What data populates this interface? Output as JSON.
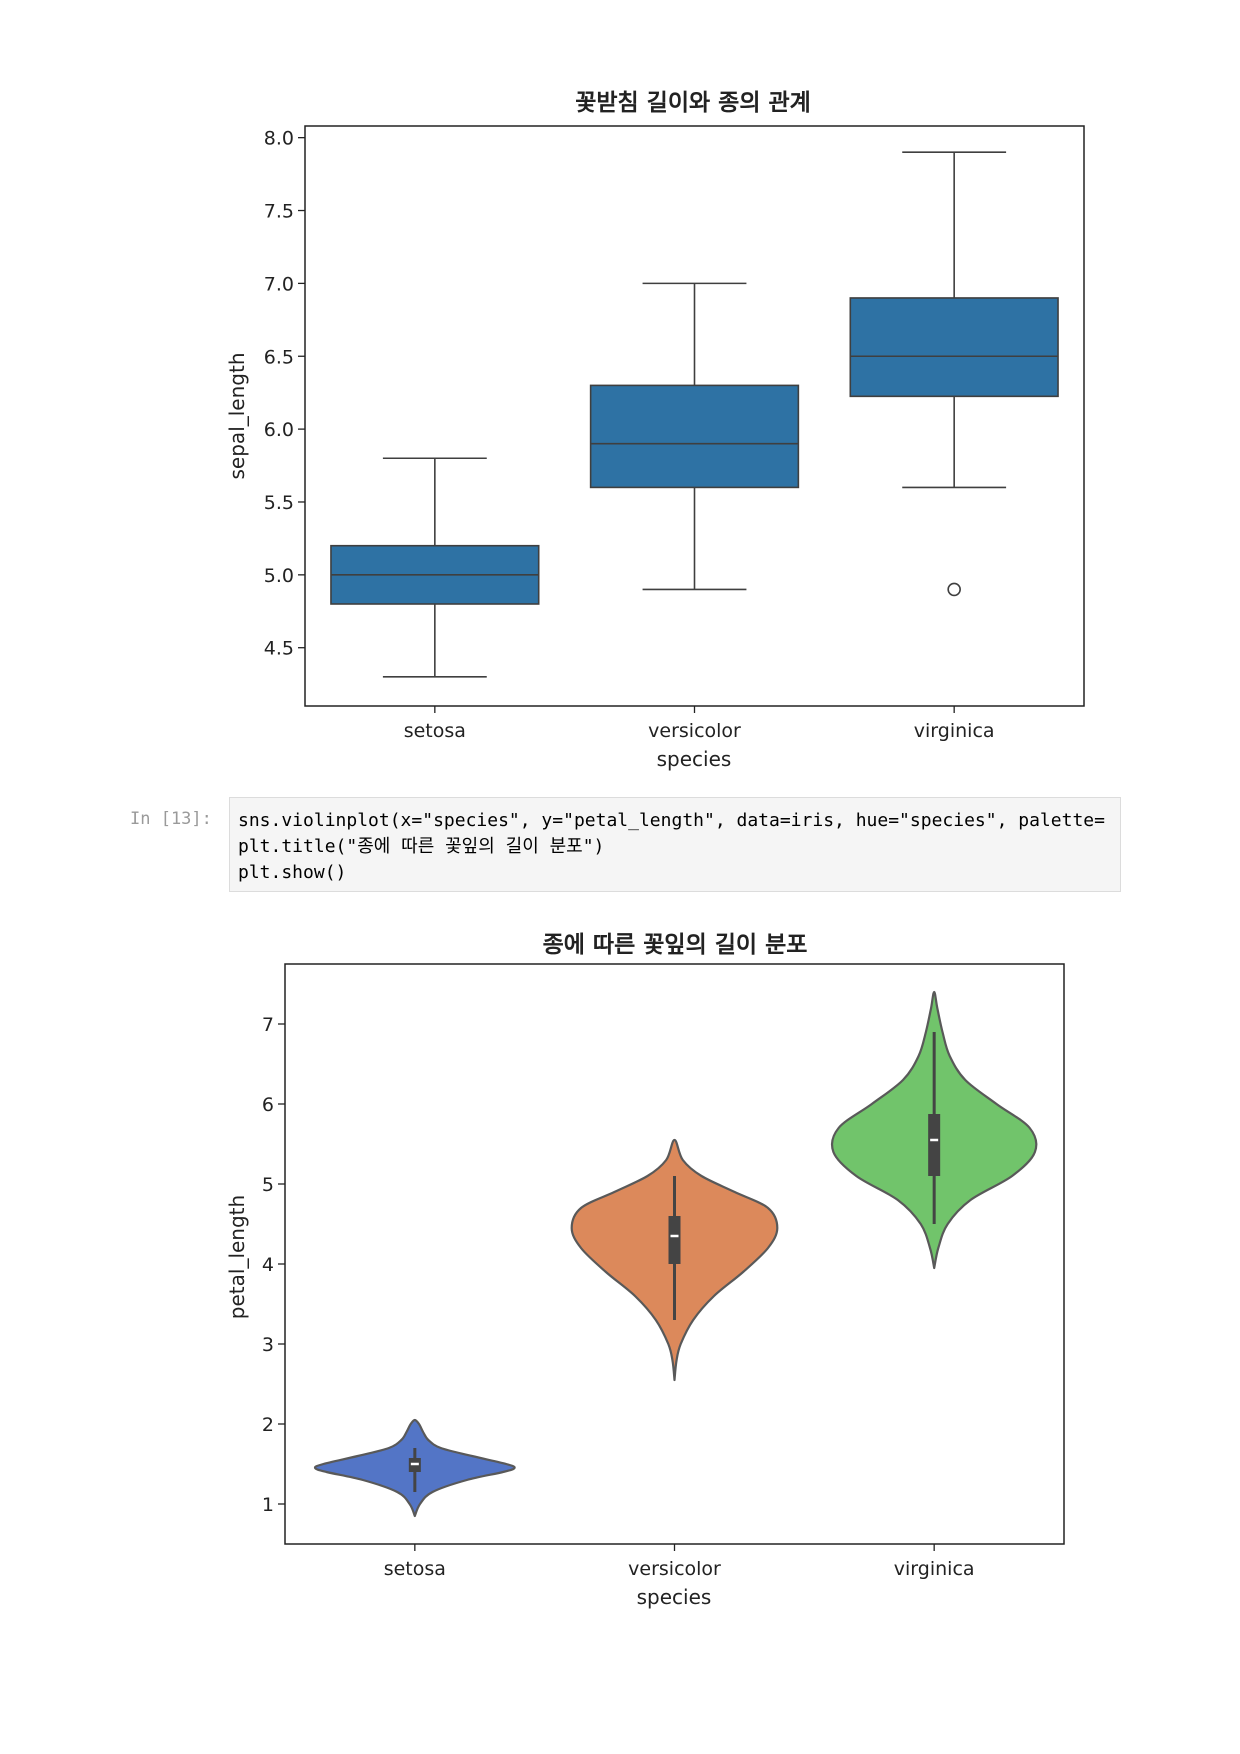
{
  "chart_data": [
    {
      "type": "box",
      "title": "꽃받침 길이와 종의 관계",
      "xlabel": "species",
      "ylabel": "sepal_length",
      "categories": [
        "setosa",
        "versicolor",
        "virginica"
      ],
      "ylim": [
        4.1,
        8.08
      ],
      "yticks": [
        "4.5",
        "5.0",
        "5.5",
        "6.0",
        "6.5",
        "7.0",
        "7.5",
        "8.0"
      ],
      "color": "#2e72a4",
      "boxes": [
        {
          "category": "setosa",
          "min": 4.3,
          "q1": 4.8,
          "median": 5.0,
          "q3": 5.2,
          "max": 5.8,
          "outliers": []
        },
        {
          "category": "versicolor",
          "min": 4.9,
          "q1": 5.6,
          "median": 5.9,
          "q3": 6.3,
          "max": 7.0,
          "outliers": []
        },
        {
          "category": "virginica",
          "min": 5.6,
          "q1": 6.225,
          "median": 6.5,
          "q3": 6.9,
          "max": 7.9,
          "outliers": [
            4.9
          ]
        }
      ]
    },
    {
      "type": "violin",
      "title": "종에 따른 꽃잎의 길이 분포",
      "xlabel": "species",
      "ylabel": "petal_length",
      "categories": [
        "setosa",
        "versicolor",
        "virginica"
      ],
      "ylim": [
        0.5,
        7.75
      ],
      "yticks": [
        "1",
        "2",
        "3",
        "4",
        "5",
        "6",
        "7"
      ],
      "violins": [
        {
          "category": "setosa",
          "color": "#5375c6",
          "kde_min": 0.85,
          "kde_max": 2.05,
          "whisker_low": 1.15,
          "whisker_high": 1.7,
          "q1": 1.4,
          "median": 1.5,
          "q3": 1.575,
          "profile": [
            [
              0.85,
              0.0
            ],
            [
              1.0,
              0.05
            ],
            [
              1.15,
              0.17
            ],
            [
              1.3,
              0.5
            ],
            [
              1.4,
              0.85
            ],
            [
              1.45,
              0.96
            ],
            [
              1.5,
              0.88
            ],
            [
              1.6,
              0.55
            ],
            [
              1.7,
              0.25
            ],
            [
              1.8,
              0.13
            ],
            [
              1.9,
              0.08
            ],
            [
              2.0,
              0.04
            ],
            [
              2.05,
              0.0
            ]
          ]
        },
        {
          "category": "versicolor",
          "color": "#dc895b",
          "kde_min": 2.55,
          "kde_max": 5.55,
          "whisker_low": 3.3,
          "whisker_high": 5.1,
          "q1": 4.0,
          "median": 4.35,
          "q3": 4.6,
          "profile": [
            [
              2.55,
              0.0
            ],
            [
              2.8,
              0.02
            ],
            [
              3.0,
              0.06
            ],
            [
              3.3,
              0.18
            ],
            [
              3.6,
              0.38
            ],
            [
              3.9,
              0.66
            ],
            [
              4.2,
              0.9
            ],
            [
              4.45,
              0.99
            ],
            [
              4.7,
              0.9
            ],
            [
              4.9,
              0.58
            ],
            [
              5.1,
              0.26
            ],
            [
              5.3,
              0.08
            ],
            [
              5.55,
              0.0
            ]
          ]
        },
        {
          "category": "virginica",
          "color": "#71c46b",
          "kde_min": 3.95,
          "kde_max": 7.4,
          "whisker_low": 4.5,
          "whisker_high": 6.9,
          "q1": 5.1,
          "median": 5.55,
          "q3": 5.875,
          "profile": [
            [
              3.95,
              0.0
            ],
            [
              4.2,
              0.04
            ],
            [
              4.5,
              0.13
            ],
            [
              4.8,
              0.35
            ],
            [
              5.1,
              0.75
            ],
            [
              5.4,
              0.97
            ],
            [
              5.7,
              0.92
            ],
            [
              6.0,
              0.6
            ],
            [
              6.3,
              0.3
            ],
            [
              6.6,
              0.15
            ],
            [
              6.9,
              0.08
            ],
            [
              7.2,
              0.03
            ],
            [
              7.4,
              0.0
            ]
          ]
        }
      ]
    }
  ],
  "code_cell": {
    "prompt": "In [13]:",
    "lines": [
      "sns.violinplot(x=\"species\", y=\"petal_length\", data=iris, hue=\"species\", palette=",
      "plt.title(\"종에 따른 꽃잎의 길이 분포\")",
      "plt.show()"
    ]
  }
}
